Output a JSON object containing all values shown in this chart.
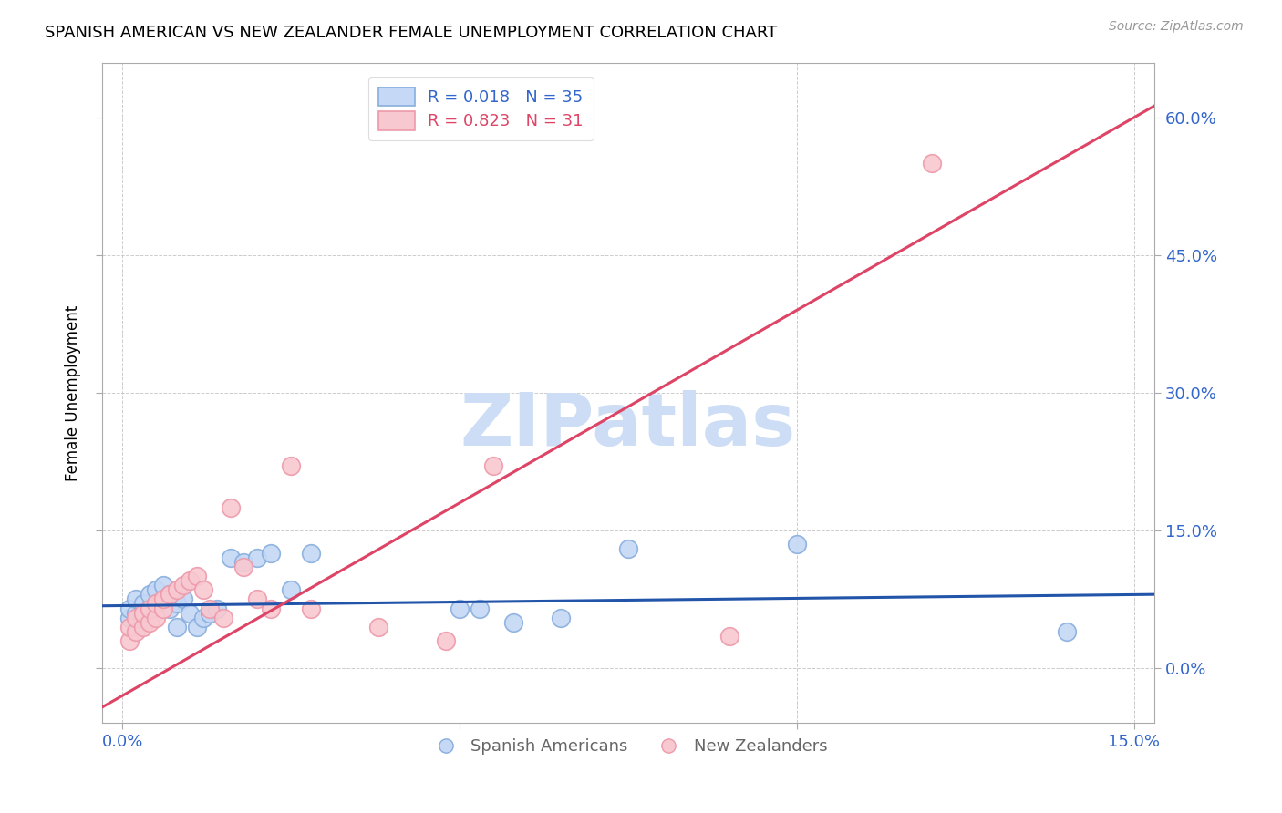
{
  "title": "SPANISH AMERICAN VS NEW ZEALANDER FEMALE UNEMPLOYMENT CORRELATION CHART",
  "source": "Source: ZipAtlas.com",
  "tick_color": "#3366cc",
  "ylabel": "Female Unemployment",
  "right_ytick_values": [
    0.0,
    0.15,
    0.3,
    0.45,
    0.6
  ],
  "xmin": -0.003,
  "xmax": 0.153,
  "ymin": -0.06,
  "ymax": 0.66,
  "blue_edge_color": "#88aedd",
  "pink_edge_color": "#ee99aa",
  "blue_fill": "#c5d8f5",
  "pink_fill": "#f8c8d0",
  "blue_line_color": "#2255aa",
  "pink_line_color": "#dd4466",
  "legend_blue_label": "R = 0.018   N = 35",
  "legend_pink_label": "R = 0.823   N = 31",
  "watermark": "ZIPatlas",
  "watermark_color": "#ccddf5",
  "legend_label_blue": "Spanish Americans",
  "legend_label_pink": "New Zealanders",
  "blue_scatter_x": [
    0.001,
    0.001,
    0.002,
    0.002,
    0.003,
    0.003,
    0.004,
    0.004,
    0.005,
    0.005,
    0.006,
    0.006,
    0.007,
    0.007,
    0.008,
    0.008,
    0.009,
    0.01,
    0.011,
    0.012,
    0.013,
    0.014,
    0.016,
    0.018,
    0.02,
    0.022,
    0.025,
    0.028,
    0.05,
    0.053,
    0.058,
    0.065,
    0.075,
    0.1,
    0.14
  ],
  "blue_scatter_y": [
    0.055,
    0.065,
    0.06,
    0.075,
    0.055,
    0.07,
    0.065,
    0.08,
    0.07,
    0.085,
    0.075,
    0.09,
    0.065,
    0.08,
    0.045,
    0.07,
    0.075,
    0.06,
    0.045,
    0.055,
    0.06,
    0.065,
    0.12,
    0.115,
    0.12,
    0.125,
    0.085,
    0.125,
    0.065,
    0.065,
    0.05,
    0.055,
    0.13,
    0.135,
    0.04
  ],
  "pink_scatter_x": [
    0.001,
    0.001,
    0.002,
    0.002,
    0.003,
    0.003,
    0.004,
    0.004,
    0.005,
    0.005,
    0.006,
    0.006,
    0.007,
    0.008,
    0.009,
    0.01,
    0.011,
    0.012,
    0.013,
    0.015,
    0.016,
    0.018,
    0.02,
    0.022,
    0.025,
    0.028,
    0.038,
    0.048,
    0.055,
    0.09,
    0.12
  ],
  "pink_scatter_y": [
    0.03,
    0.045,
    0.04,
    0.055,
    0.045,
    0.06,
    0.05,
    0.065,
    0.055,
    0.07,
    0.065,
    0.075,
    0.08,
    0.085,
    0.09,
    0.095,
    0.1,
    0.085,
    0.065,
    0.055,
    0.175,
    0.11,
    0.075,
    0.065,
    0.22,
    0.065,
    0.045,
    0.03,
    0.22,
    0.035,
    0.55
  ],
  "blue_trend_slope": 0.08,
  "blue_trend_intercept": 0.068,
  "pink_trend_slope": 4.2,
  "pink_trend_intercept": -0.03,
  "grid_color": "#cccccc"
}
